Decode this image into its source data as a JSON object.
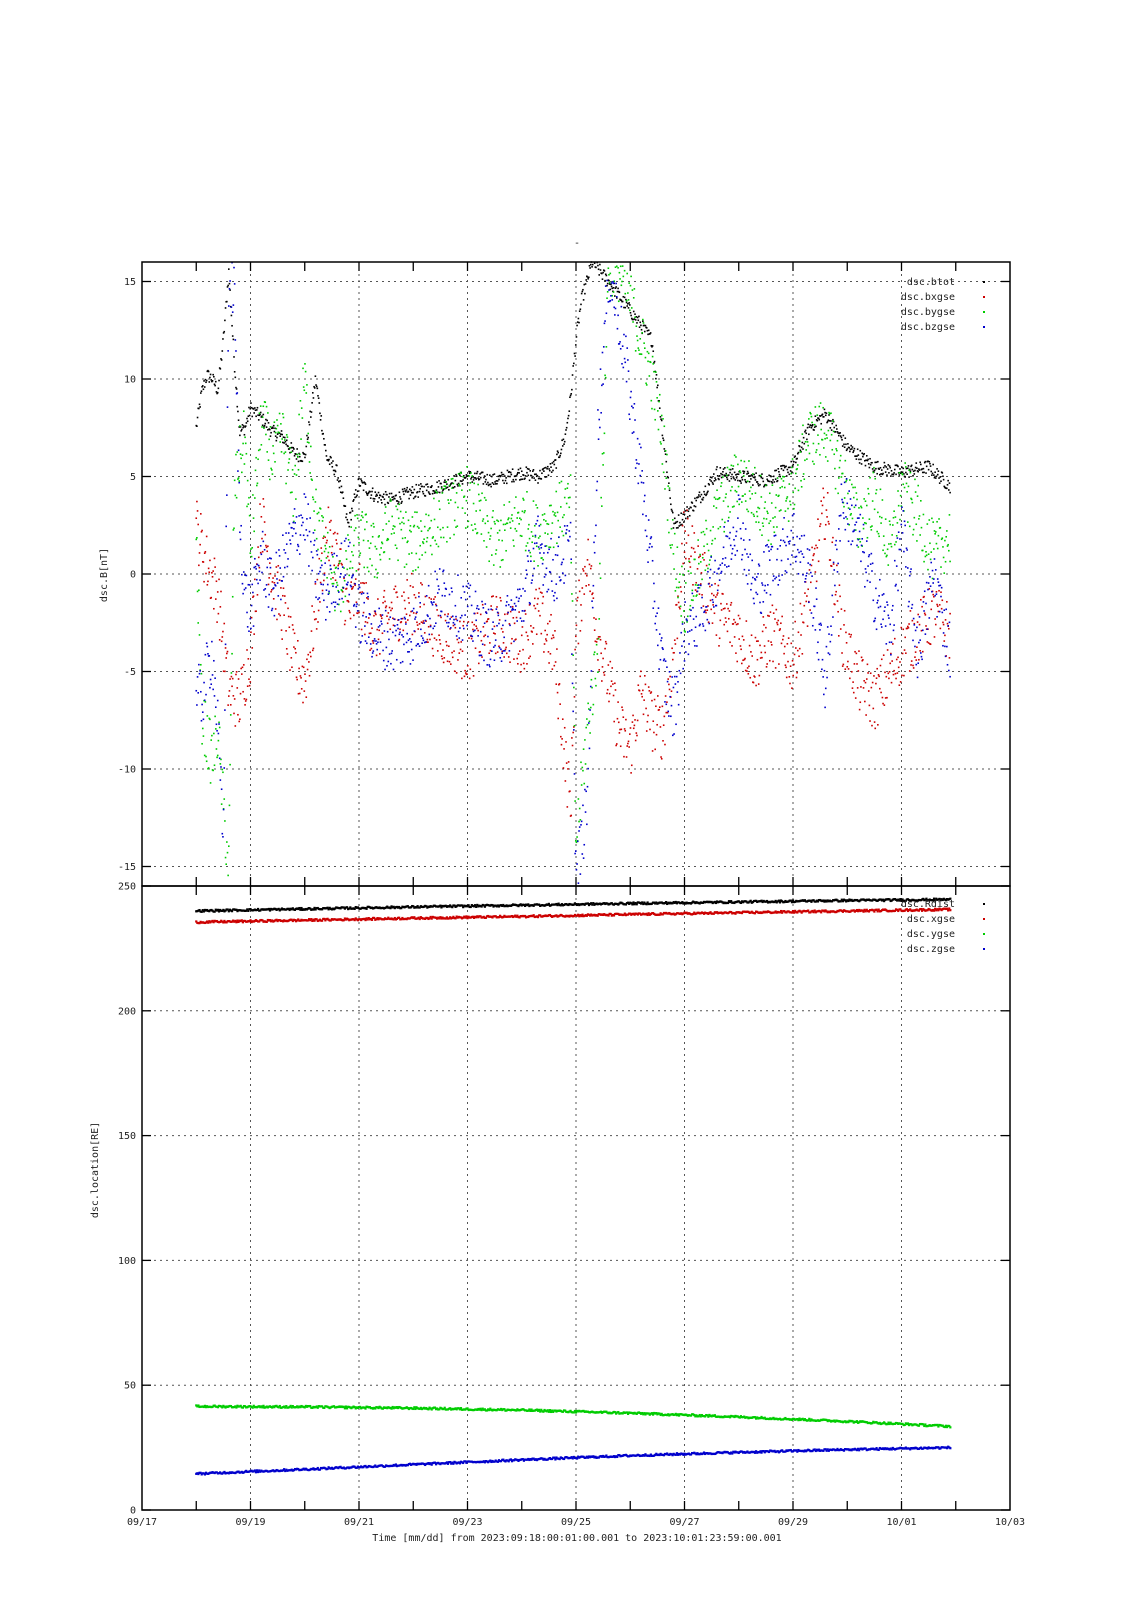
{
  "figure": {
    "title": "-",
    "xlabel": "Time [mm/dd]  from 2023:09:18:00:01:00.001  to  2023:10:01:23:59:00.001",
    "x_ticks": [
      "09/17",
      "09/19",
      "09/21",
      "09/23",
      "09/25",
      "09/27",
      "09/29",
      "10/01",
      "10/03"
    ]
  },
  "chart_data": [
    {
      "type": "scatter",
      "title": "",
      "ylabel": "dsc.B[nT]",
      "xlabel": "Time [mm/dd]",
      "xlim": [
        0,
        16
      ],
      "x_units": "days since 09/17",
      "ylim": [
        -16,
        16
      ],
      "y_ticks": [
        -15,
        -10,
        -5,
        0,
        5,
        10,
        15
      ],
      "grid": true,
      "legend_position": "top-right",
      "series": [
        {
          "name": "dsc.btot",
          "color": "#000000",
          "x": [
            1.0,
            1.1,
            1.2,
            1.3,
            1.4,
            1.5,
            1.6,
            1.7,
            1.8,
            1.9,
            2.0,
            2.2,
            2.4,
            2.6,
            2.8,
            3.0,
            3.2,
            3.4,
            3.6,
            3.8,
            4.0,
            4.3,
            4.6,
            5.0,
            5.5,
            6.0,
            6.5,
            7.0,
            7.3,
            7.6,
            7.8,
            7.9,
            8.0,
            8.1,
            8.3,
            8.6,
            9.0,
            9.4,
            9.8,
            10.0,
            10.3,
            10.6,
            11.0,
            11.5,
            12.0,
            12.3,
            12.6,
            13.0,
            13.5,
            14.0,
            14.5,
            14.9
          ],
          "values": [
            7.5,
            9.3,
            10.2,
            10.0,
            9.4,
            12.0,
            15.5,
            11.0,
            7.3,
            7.5,
            8.5,
            8.0,
            7.3,
            7.0,
            6.2,
            6.0,
            10.0,
            6.0,
            5.2,
            2.5,
            4.7,
            4.0,
            3.8,
            4.2,
            4.5,
            5.0,
            4.8,
            5.2,
            5.0,
            5.5,
            7.0,
            9.0,
            12.0,
            14.0,
            16.0,
            15.0,
            13.5,
            12.0,
            2.5,
            3.0,
            4.0,
            5.2,
            5.0,
            4.8,
            5.5,
            7.5,
            8.2,
            6.5,
            5.5,
            5.2,
            5.5,
            4.5
          ]
        },
        {
          "name": "dsc.bxgse",
          "color": "#cc0000",
          "x": [
            1.0,
            1.2,
            1.4,
            1.6,
            1.8,
            2.0,
            2.2,
            2.4,
            2.6,
            2.8,
            3.0,
            3.2,
            3.4,
            3.6,
            3.8,
            4.0,
            4.3,
            4.6,
            5.0,
            5.5,
            6.0,
            6.5,
            7.0,
            7.3,
            7.6,
            7.9,
            8.0,
            8.2,
            8.4,
            8.6,
            8.8,
            9.0,
            9.2,
            9.4,
            9.6,
            9.8,
            10.0,
            10.3,
            10.6,
            11.0,
            11.3,
            11.6,
            12.0,
            12.3,
            12.6,
            12.9,
            13.2,
            13.5,
            13.8,
            14.0,
            14.3,
            14.6,
            14.9
          ],
          "values": [
            2.5,
            0.5,
            -1.0,
            -6.0,
            -6.5,
            -4.0,
            3.0,
            0.0,
            -2.0,
            -4.5,
            -5.5,
            -2.0,
            2.0,
            1.0,
            -2.0,
            -1.0,
            -3.0,
            -2.0,
            -1.5,
            -3.0,
            -4.0,
            -2.5,
            -3.5,
            -2.0,
            -4.0,
            -12.0,
            -3.0,
            1.0,
            -3.0,
            -5.5,
            -8.0,
            -9.0,
            -6.0,
            -7.5,
            -8.0,
            -4.0,
            2.0,
            0.0,
            -2.0,
            -3.0,
            -4.5,
            -3.0,
            -4.5,
            -1.0,
            3.5,
            -3.0,
            -5.5,
            -6.5,
            -5.0,
            -4.0,
            -3.0,
            -2.0,
            -3.0
          ]
        },
        {
          "name": "dsc.bygse",
          "color": "#00cc00",
          "x": [
            1.0,
            1.1,
            1.2,
            1.3,
            1.4,
            1.5,
            1.6,
            1.7,
            1.8,
            1.9,
            2.0,
            2.2,
            2.4,
            2.6,
            2.8,
            3.0,
            3.2,
            3.4,
            3.6,
            3.8,
            4.0,
            4.3,
            4.6,
            5.0,
            5.5,
            6.0,
            6.5,
            7.0,
            7.3,
            7.6,
            7.9,
            8.0,
            8.2,
            8.4,
            8.6,
            8.8,
            9.0,
            9.2,
            9.4,
            9.6,
            9.8,
            10.0,
            10.3,
            10.6,
            11.0,
            11.3,
            11.6,
            12.0,
            12.3,
            12.6,
            12.9,
            13.2,
            13.5,
            13.8,
            14.0,
            14.3,
            14.6,
            14.9
          ],
          "values": [
            2.0,
            -7.0,
            -8.5,
            -9.5,
            -8.0,
            -12.0,
            -15.0,
            4.0,
            6.0,
            7.0,
            1.0,
            8.0,
            6.0,
            7.0,
            4.0,
            10.0,
            3.0,
            1.0,
            -1.0,
            0.5,
            2.0,
            1.0,
            2.5,
            1.5,
            3.0,
            4.0,
            1.5,
            3.0,
            2.0,
            3.0,
            3.5,
            -14.0,
            -8.0,
            -4.0,
            16.0,
            15.5,
            14.0,
            12.0,
            10.0,
            7.0,
            1.0,
            -1.5,
            0.5,
            3.0,
            5.0,
            4.0,
            3.0,
            4.5,
            7.0,
            7.5,
            5.0,
            2.5,
            4.0,
            1.0,
            4.5,
            3.0,
            1.0,
            2.0
          ]
        },
        {
          "name": "dsc.bzgse",
          "color": "#0000cc",
          "x": [
            1.0,
            1.1,
            1.2,
            1.3,
            1.4,
            1.5,
            1.6,
            1.7,
            1.8,
            1.9,
            2.0,
            2.2,
            2.4,
            2.6,
            2.8,
            3.0,
            3.2,
            3.4,
            3.6,
            3.8,
            4.0,
            4.3,
            4.6,
            5.0,
            5.5,
            6.0,
            6.5,
            7.0,
            7.3,
            7.6,
            7.9,
            8.0,
            8.2,
            8.4,
            8.6,
            8.8,
            9.0,
            9.2,
            9.4,
            9.6,
            9.8,
            10.0,
            10.3,
            10.6,
            11.0,
            11.3,
            11.6,
            12.0,
            12.3,
            12.6,
            12.9,
            13.2,
            13.5,
            13.8,
            14.0,
            14.3,
            14.6,
            14.9
          ],
          "values": [
            -6.0,
            -6.5,
            -5.0,
            -4.0,
            -8.0,
            -14.0,
            15.0,
            14.5,
            3.0,
            -1.0,
            -2.0,
            1.0,
            -1.0,
            0.5,
            2.0,
            3.0,
            0.0,
            -1.0,
            0.0,
            0.5,
            -2.0,
            -3.0,
            -3.5,
            -3.0,
            -1.0,
            -2.0,
            -3.5,
            -1.5,
            1.5,
            0.0,
            1.5,
            -15.5,
            -12.0,
            7.0,
            15.5,
            13.0,
            9.0,
            5.0,
            0.0,
            -5.0,
            -7.0,
            -3.0,
            -2.0,
            0.0,
            3.0,
            -1.0,
            0.5,
            2.0,
            0.0,
            -5.5,
            4.0,
            2.0,
            -1.0,
            -3.0,
            2.5,
            -4.0,
            0.0,
            -4.0
          ]
        }
      ]
    },
    {
      "type": "scatter",
      "title": "",
      "ylabel": "dsc.location[RE]",
      "xlabel": "Time [mm/dd]",
      "xlim": [
        0,
        16
      ],
      "x_units": "days since 09/17",
      "ylim": [
        0,
        250
      ],
      "y_ticks": [
        0,
        50,
        100,
        150,
        200,
        250
      ],
      "grid": true,
      "legend_position": "top-right",
      "series": [
        {
          "name": "dsc.Rdist",
          "color": "#000000",
          "x": [
            1.0,
            3.0,
            5.0,
            7.0,
            9.0,
            11.0,
            13.0,
            14.9
          ],
          "values": [
            240.0,
            240.8,
            241.6,
            242.3,
            243.0,
            243.6,
            244.2,
            244.6
          ]
        },
        {
          "name": "dsc.xgse",
          "color": "#cc0000",
          "x": [
            1.0,
            3.0,
            5.0,
            7.0,
            9.0,
            11.0,
            13.0,
            14.9
          ],
          "values": [
            235.5,
            236.3,
            237.1,
            237.8,
            238.6,
            239.3,
            240.0,
            240.6
          ]
        },
        {
          "name": "dsc.ygse",
          "color": "#00cc00",
          "x": [
            1.0,
            3.0,
            5.0,
            7.0,
            9.0,
            11.0,
            13.0,
            14.9
          ],
          "values": [
            41.5,
            41.3,
            40.8,
            40.0,
            38.8,
            37.3,
            35.5,
            33.5
          ]
        },
        {
          "name": "dsc.zgse",
          "color": "#0000cc",
          "x": [
            1.0,
            3.0,
            5.0,
            7.0,
            9.0,
            11.0,
            13.0,
            14.9
          ],
          "values": [
            14.5,
            16.3,
            18.2,
            20.1,
            21.8,
            23.1,
            24.2,
            25.0
          ]
        }
      ]
    }
  ]
}
